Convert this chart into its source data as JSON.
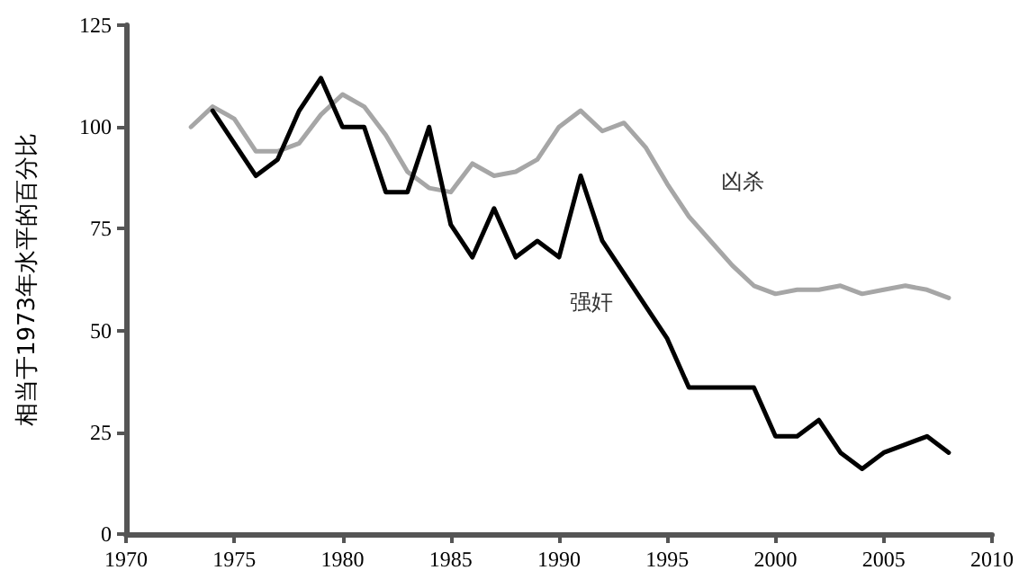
{
  "chart_data": {
    "type": "line",
    "ylabel": "相当于1973年水平的百分比",
    "xlim": [
      1970,
      2010
    ],
    "xticks": [
      1970,
      1975,
      1980,
      1985,
      1990,
      1995,
      2000,
      2005,
      2010
    ],
    "ylim": [
      0,
      125
    ],
    "yticks": [
      0,
      25,
      50,
      75,
      100,
      125
    ],
    "grid": false,
    "legend": false,
    "marker": "none",
    "line_style": "solid",
    "series": [
      {
        "name": "凶杀",
        "color": "#a6a6a6",
        "x": [
          1973,
          1974,
          1975,
          1976,
          1977,
          1978,
          1979,
          1980,
          1981,
          1982,
          1983,
          1984,
          1985,
          1986,
          1987,
          1988,
          1989,
          1990,
          1991,
          1992,
          1993,
          1994,
          1995,
          1996,
          1997,
          1998,
          1999,
          2000,
          2001,
          2002,
          2003,
          2004,
          2005,
          2006,
          2007,
          2008
        ],
        "values": [
          100,
          105,
          102,
          94,
          94,
          96,
          103,
          108,
          105,
          98,
          89,
          85,
          84,
          91,
          88,
          89,
          92,
          100,
          104,
          99,
          101,
          95,
          86,
          78,
          72,
          66,
          61,
          59,
          60,
          60,
          61,
          59,
          60,
          61,
          60,
          58
        ]
      },
      {
        "name": "强奸",
        "color": "#000000",
        "x": [
          1974,
          1975,
          1976,
          1977,
          1978,
          1979,
          1980,
          1981,
          1982,
          1983,
          1984,
          1985,
          1986,
          1987,
          1988,
          1989,
          1990,
          1991,
          1992,
          1993,
          1994,
          1995,
          1996,
          1997,
          1998,
          1999,
          2000,
          2001,
          2002,
          2003,
          2004,
          2005,
          2006,
          2007,
          2008
        ],
        "values": [
          104,
          96,
          88,
          92,
          104,
          112,
          100,
          100,
          84,
          84,
          100,
          76,
          68,
          80,
          68,
          72,
          68,
          88,
          72,
          64,
          56,
          48,
          36,
          36,
          36,
          36,
          24,
          24,
          28,
          20,
          16,
          20,
          22,
          24,
          20
        ]
      }
    ]
  }
}
